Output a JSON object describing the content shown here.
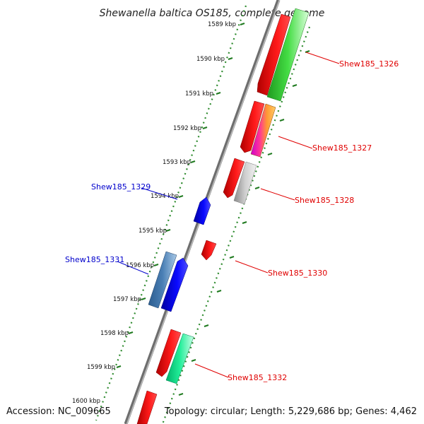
{
  "title": "Shewanella baltica OS185, complete genome",
  "accession": "Accession: NC_009665",
  "summary": "Topology: circular; Length: 5,229,686 bp; Genes: 4,462",
  "ticks": [
    {
      "label": "1589 kbp"
    },
    {
      "label": "1590 kbp"
    },
    {
      "label": "1591 kbp"
    },
    {
      "label": "1592 kbp"
    },
    {
      "label": "1593 kbp"
    },
    {
      "label": "1594 kbp"
    },
    {
      "label": "1595 kbp"
    },
    {
      "label": "1596 kbp"
    },
    {
      "label": "1597 kbp"
    },
    {
      "label": "1598 kbp"
    },
    {
      "label": "1599 kbp"
    },
    {
      "label": "1600 kbp"
    }
  ],
  "gene_labels": [
    {
      "text": "Shew185_1326",
      "color": "#e00000"
    },
    {
      "text": "Shew185_1327",
      "color": "#e00000"
    },
    {
      "text": "Shew185_1328",
      "color": "#e00000"
    },
    {
      "text": "Shew185_1329",
      "color": "#0000cc"
    },
    {
      "text": "Shew185_1330",
      "color": "#e00000"
    },
    {
      "text": "Shew185_1331",
      "color": "#0000cc"
    },
    {
      "text": "Shew185_1332",
      "color": "#e00000"
    }
  ],
  "colors": {
    "forward_cds": "#ff0000",
    "reverse_cds": "#0000ff",
    "rrna_green": "#33cc33",
    "grey_feature": "#bbbbbb",
    "teal_feature": "#00e68a",
    "steel_feature": "#4a7fb5",
    "backbone": "#808080",
    "tick_green": "#2e8b2e"
  }
}
